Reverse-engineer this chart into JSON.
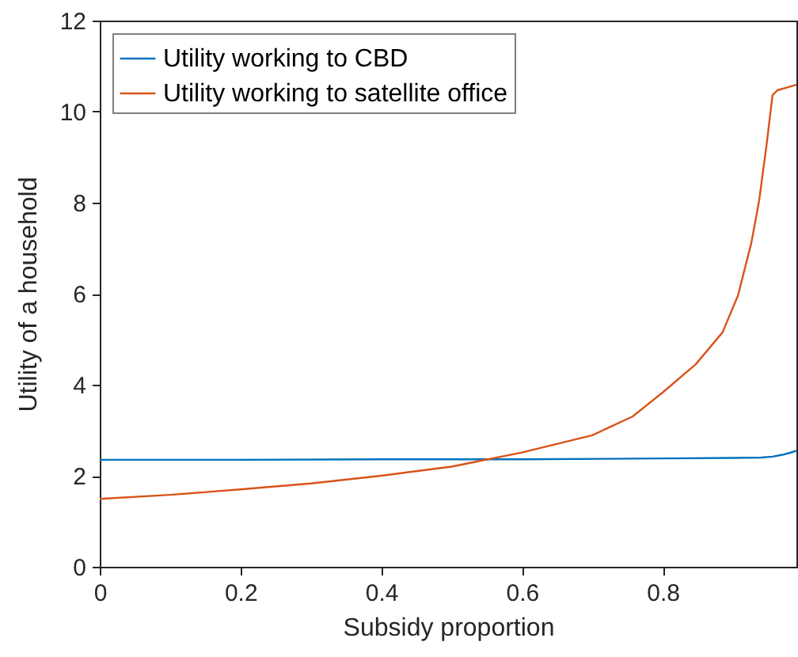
{
  "chart_data": {
    "type": "line",
    "xlabel": "Subsidy proportion",
    "ylabel": "Utility of a household",
    "xlim": [
      0,
      0.99
    ],
    "xticks": [
      0,
      0.2,
      0.4,
      0.6,
      0.8
    ],
    "ylim": [
      0,
      12
    ],
    "yticks": [
      0,
      2,
      4,
      6,
      8,
      10,
      12
    ],
    "legend": "top left",
    "grid": false,
    "series": [
      {
        "name": "Utility working to CBD",
        "color": "#0072bd",
        "x": [
          0,
          0.2,
          0.4,
          0.6,
          0.8,
          0.9,
          0.94,
          0.956,
          0.97,
          0.98,
          0.99
        ],
        "values": [
          2.35,
          2.35,
          2.36,
          2.36,
          2.38,
          2.39,
          2.4,
          2.42,
          2.46,
          2.5,
          2.55
        ]
      },
      {
        "name": "Utility working to satellite office",
        "color": "#d95319",
        "x": [
          0,
          0.1,
          0.2,
          0.3,
          0.4,
          0.5,
          0.6,
          0.7,
          0.757,
          0.8,
          0.847,
          0.885,
          0.907,
          0.926,
          0.937,
          0.948,
          0.956,
          0.963,
          0.99
        ],
        "values": [
          1.49,
          1.58,
          1.7,
          1.83,
          2.0,
          2.2,
          2.51,
          2.89,
          3.3,
          3.83,
          4.45,
          5.15,
          5.96,
          7.12,
          8.04,
          9.32,
          10.36,
          10.47,
          10.59
        ]
      }
    ]
  }
}
